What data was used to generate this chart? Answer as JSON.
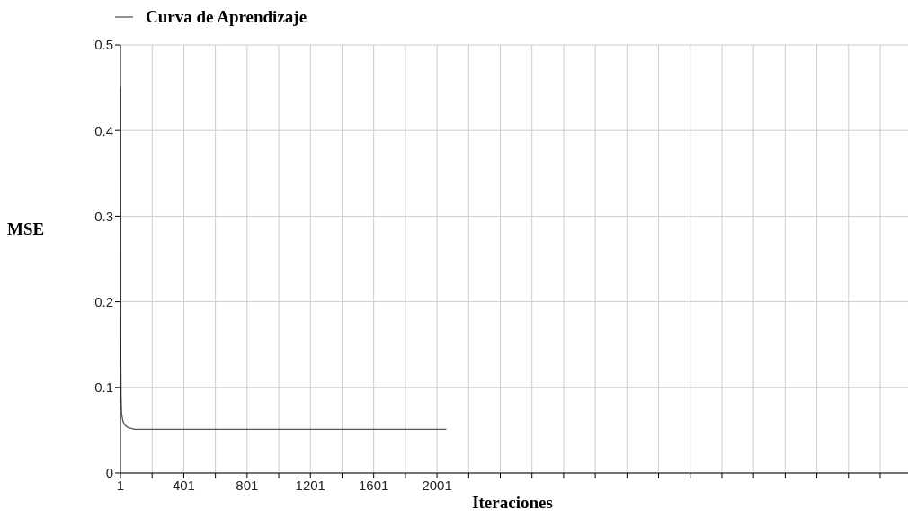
{
  "chart_data": {
    "type": "line",
    "xlabel": "Iteraciones",
    "ylabel": "MSE",
    "x": [
      1,
      3,
      5,
      8,
      12,
      18,
      25,
      35,
      50,
      70,
      90,
      2060
    ],
    "series": [
      {
        "name": "Curva de Aprendizaje",
        "color": "#555555",
        "values": [
          0.45,
          0.135,
          0.09,
          0.07,
          0.065,
          0.06,
          0.057,
          0.055,
          0.053,
          0.052,
          0.051,
          0.051
        ]
      }
    ],
    "xlim": [
      1,
      4977
    ],
    "xticks": [
      1,
      {
        "value": 201,
        "label": null
      },
      401,
      {
        "value": 601,
        "label": null
      },
      801,
      {
        "value": 1001,
        "label": null
      },
      1201,
      {
        "value": 1401,
        "label": null
      },
      1601,
      {
        "value": 1801,
        "label": null
      },
      2001,
      {
        "value": 2201,
        "label": null
      },
      {
        "value": 2401,
        "label": null
      },
      {
        "value": 2601,
        "label": null
      },
      {
        "value": 2801,
        "label": null
      },
      {
        "value": 3001,
        "label": null
      },
      {
        "value": 3201,
        "label": null
      },
      {
        "value": 3401,
        "label": null
      },
      {
        "value": 3601,
        "label": null
      },
      {
        "value": 3801,
        "label": null
      },
      {
        "value": 4001,
        "label": null
      },
      {
        "value": 4201,
        "label": null
      },
      {
        "value": 4401,
        "label": null
      },
      {
        "value": 4601,
        "label": null
      },
      {
        "value": 4801,
        "label": null
      }
    ],
    "ylim": [
      0,
      0.5
    ],
    "yticks": [
      0,
      0.1,
      0.2,
      0.3,
      0.4,
      0.5
    ],
    "grid": true,
    "legend": "top left",
    "marker": "none",
    "line_style": "solid"
  }
}
